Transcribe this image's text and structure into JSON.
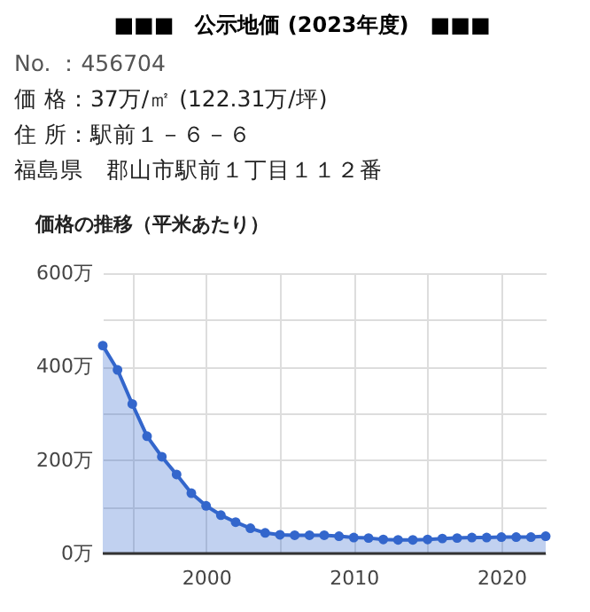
{
  "chart_data": {
    "type": "area",
    "title": "■■■　公示地価 (2023年度)　■■■",
    "subtitle": "価格の推移（平米あたり）",
    "annotations": [
      "No. ：456704",
      "価 格：37万/㎡ (122.31万/坪)",
      "住 所：駅前１－６－６",
      "福島県　郡山市駅前１丁目１１２番"
    ],
    "x": [
      1993,
      1994,
      1995,
      1996,
      1997,
      1998,
      1999,
      2000,
      2001,
      2002,
      2003,
      2004,
      2005,
      2006,
      2007,
      2008,
      2009,
      2010,
      2011,
      2012,
      2013,
      2014,
      2015,
      2016,
      2017,
      2018,
      2019,
      2020,
      2021,
      2022,
      2023
    ],
    "series": [
      {
        "color": "#3366cc",
        "values": [
          445,
          393,
          320,
          251,
          207,
          169,
          129,
          102,
          82,
          67,
          54,
          44,
          40,
          39,
          39,
          39,
          37,
          34,
          33,
          30,
          29,
          29,
          30,
          32,
          33,
          34,
          34,
          35,
          35,
          35,
          37
        ]
      }
    ],
    "xlim": [
      1993,
      2023
    ],
    "xticks": [
      {
        "value": 1995,
        "label": null
      },
      2000,
      {
        "value": 2005,
        "label": null
      },
      2010,
      {
        "value": 2015,
        "label": null
      },
      2020
    ],
    "ylim": [
      0,
      600
    ],
    "yticks": [
      {
        "value": 0,
        "label": "0万"
      },
      {
        "value": 100,
        "label": null
      },
      {
        "value": 200,
        "label": "200万"
      },
      {
        "value": 300,
        "label": null
      },
      {
        "value": 400,
        "label": "400万"
      },
      {
        "value": 500,
        "label": null
      },
      {
        "value": 600,
        "label": "600万"
      }
    ],
    "grid": true,
    "marker": "circle"
  }
}
